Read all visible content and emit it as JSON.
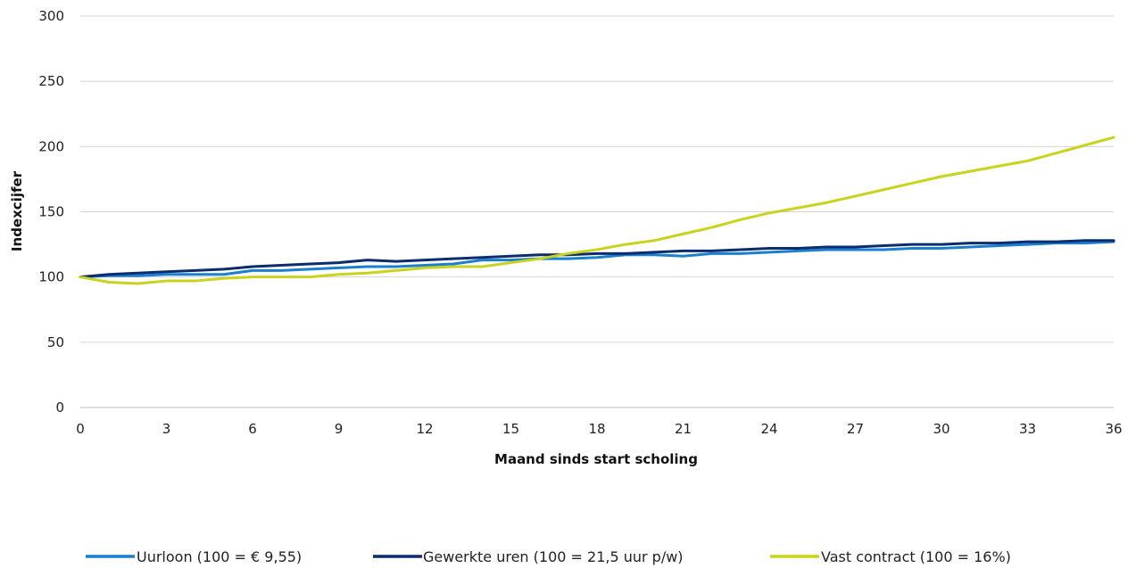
{
  "chart_data": {
    "type": "line",
    "title": "",
    "xlabel": "Maand sinds start scholing",
    "ylabel": "Indexcijfer",
    "xlim": [
      0,
      36
    ],
    "ylim": [
      0,
      300
    ],
    "x_ticks": [
      0,
      3,
      6,
      9,
      12,
      15,
      18,
      21,
      24,
      27,
      30,
      33,
      36
    ],
    "y_ticks": [
      0,
      50,
      100,
      150,
      200,
      250,
      300
    ],
    "grid": "horizontal",
    "legend_position": "bottom",
    "x": [
      0,
      1,
      2,
      3,
      4,
      5,
      6,
      7,
      8,
      9,
      10,
      11,
      12,
      13,
      14,
      15,
      16,
      17,
      18,
      19,
      20,
      21,
      22,
      23,
      24,
      25,
      26,
      27,
      28,
      29,
      30,
      31,
      32,
      33,
      34,
      35,
      36
    ],
    "series": [
      {
        "name": "Uurloon (100 = € 9,55)",
        "color": "#1b7fd0",
        "values": [
          100,
          101,
          101,
          102,
          102,
          102,
          105,
          105,
          106,
          107,
          108,
          108,
          109,
          110,
          113,
          113,
          114,
          114,
          115,
          117,
          117,
          116,
          118,
          118,
          119,
          120,
          121,
          121,
          121,
          122,
          122,
          123,
          124,
          125,
          126,
          126,
          127
        ]
      },
      {
        "name": "Gewerkte uren (100 = 21,5 uur p/w)",
        "color": "#0b2c6e",
        "values": [
          100,
          102,
          103,
          104,
          105,
          106,
          108,
          109,
          110,
          111,
          113,
          112,
          113,
          114,
          115,
          116,
          117,
          117,
          118,
          118,
          119,
          120,
          120,
          121,
          122,
          122,
          123,
          123,
          124,
          125,
          125,
          126,
          126,
          127,
          127,
          128,
          128
        ]
      },
      {
        "name": "Vast contract (100 = 16%)",
        "color": "#c8d41c",
        "values": [
          100,
          96,
          95,
          97,
          97,
          99,
          100,
          100,
          100,
          102,
          103,
          105,
          107,
          108,
          108,
          111,
          114,
          118,
          121,
          125,
          128,
          133,
          138,
          144,
          149,
          153,
          157,
          162,
          167,
          172,
          177,
          181,
          185,
          189,
          195,
          201,
          207
        ]
      }
    ]
  }
}
